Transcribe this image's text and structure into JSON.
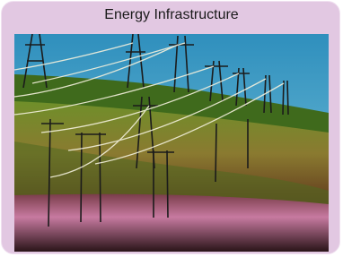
{
  "title": "Energy Infrastructure"
}
